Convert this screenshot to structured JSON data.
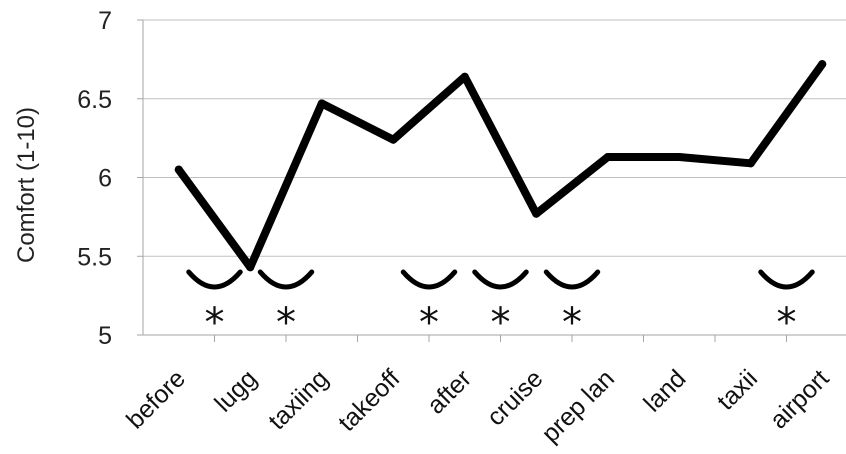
{
  "chart_data": {
    "type": "line",
    "title": "",
    "xlabel": "",
    "ylabel": "Comfort (1-10)",
    "ylim": [
      5,
      7
    ],
    "yticks": [
      "5",
      "5.5",
      "6",
      "6.5",
      "7"
    ],
    "grid": "horizontal",
    "categories": [
      "before",
      "lugg",
      "taxiing",
      "takeoff",
      "after",
      "cruise",
      "prep lan",
      "land",
      "taxii",
      "airport"
    ],
    "series": [
      {
        "values": [
          6.05,
          5.43,
          6.47,
          6.24,
          6.64,
          5.77,
          6.13,
          6.13,
          6.09,
          6.72
        ]
      }
    ],
    "significance": {
      "marker": "*",
      "pairs": [
        [
          "before",
          "lugg"
        ],
        [
          "lugg",
          "taxiing"
        ],
        [
          "takeoff",
          "after"
        ],
        [
          "after",
          "cruise"
        ],
        [
          "cruise",
          "prep lan"
        ],
        [
          "taxii",
          "airport"
        ]
      ]
    },
    "colors": {
      "line": "#000000",
      "grid": "#c0c0c0",
      "axis": "#a6a6a6"
    }
  }
}
